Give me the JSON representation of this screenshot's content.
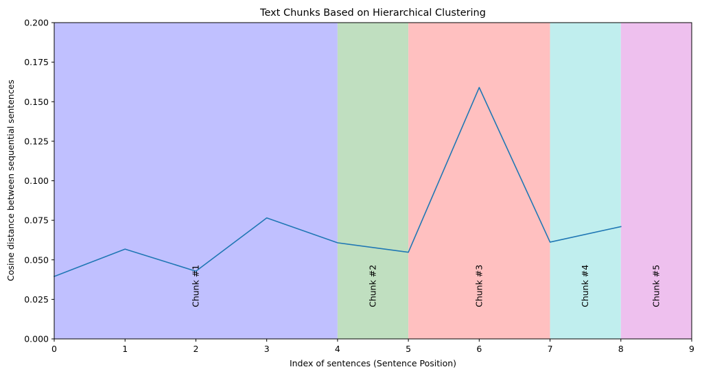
{
  "chart_data": {
    "type": "line",
    "title": "Text Chunks Based on Hierarchical Clustering",
    "xlabel": "Index of sentences (Sentence Position)",
    "ylabel": "Cosine distance between sequential sentences",
    "xlim": [
      0,
      9
    ],
    "ylim": [
      0,
      0.2
    ],
    "x_ticks": [
      0,
      1,
      2,
      3,
      4,
      5,
      6,
      7,
      8,
      9
    ],
    "x_tick_labels": [
      "0",
      "1",
      "2",
      "3",
      "4",
      "5",
      "6",
      "7",
      "8",
      "9"
    ],
    "y_ticks": [
      0,
      0.025,
      0.05,
      0.075,
      0.1,
      0.125,
      0.15,
      0.175,
      0.2
    ],
    "y_tick_labels": [
      "0.000",
      "0.025",
      "0.050",
      "0.075",
      "0.100",
      "0.125",
      "0.150",
      "0.175",
      "0.200"
    ],
    "grid": false,
    "series": [
      {
        "color": "#1f77b4",
        "x": [
          0,
          1,
          2,
          3,
          4,
          5,
          6,
          7,
          8
        ],
        "y": [
          0.0395,
          0.0568,
          0.0428,
          0.0765,
          0.0608,
          0.0548,
          0.159,
          0.0612,
          0.071
        ]
      }
    ],
    "chunks": [
      {
        "label": "Chunk #1",
        "start": 0,
        "end": 4,
        "color": "#c0c0ff"
      },
      {
        "label": "Chunk #2",
        "start": 4,
        "end": 5,
        "color": "#c0dfc0"
      },
      {
        "label": "Chunk #3",
        "start": 5,
        "end": 7,
        "color": "#ffc0c0"
      },
      {
        "label": "Chunk #4",
        "start": 7,
        "end": 8,
        "color": "#c0eeee"
      },
      {
        "label": "Chunk #5",
        "start": 8,
        "end": 9,
        "color": "#eec0ee"
      }
    ],
    "chunk_label_y": 0.02
  }
}
